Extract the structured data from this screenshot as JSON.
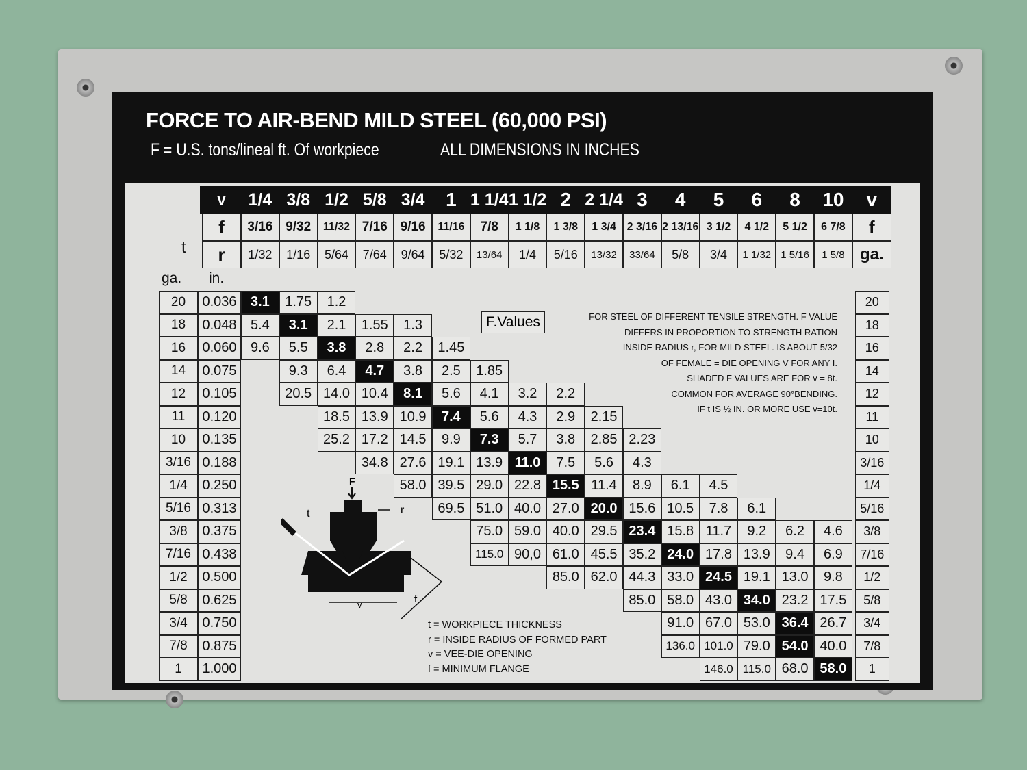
{
  "title": "FORCE TO AIR-BEND MILD STEEL (60,000 PSI)",
  "subtitle_left": "F = U.S. tons/lineal ft. Of workpiece",
  "subtitle_right": "ALL DIMENSIONS IN INCHES",
  "header": {
    "v_label": "v",
    "f_label": "f",
    "r_label": "r",
    "t_label": "t",
    "ga_label": "ga.",
    "in_label": "in.",
    "right_v": "v",
    "right_f": "f",
    "right_ga": "ga.",
    "v": [
      "1/4",
      "3/8",
      "1/2",
      "5/8",
      "3/4",
      "1",
      "1 1/4",
      "1 1/2",
      "2",
      "2 1/4",
      "3",
      "4",
      "5",
      "6",
      "8",
      "10"
    ],
    "f": [
      "3/16",
      "9/32",
      "11/32",
      "7/16",
      "9/16",
      "11/16",
      "7/8",
      "1 1/8",
      "1 3/8",
      "1 3/4",
      "2 3/16",
      "2 13/16",
      "3 1/2",
      "4 1/2",
      "5 1/2",
      "6 7/8"
    ],
    "r": [
      "1/32",
      "1/16",
      "5/64",
      "7/64",
      "9/64",
      "5/32",
      "13/64",
      "1/4",
      "5/16",
      "13/32",
      "33/64",
      "5/8",
      "3/4",
      "1 1/32",
      "1 5/16",
      "1 5/8"
    ]
  },
  "rows": [
    {
      "ga": "20",
      "in": "0.036",
      "start": 0,
      "shaded": 0,
      "values": [
        "3.1",
        "1.75",
        "1.2"
      ]
    },
    {
      "ga": "18",
      "in": "0.048",
      "start": 0,
      "shaded": 1,
      "values": [
        "5.4",
        "3.1",
        "2.1",
        "1.55",
        "1.3"
      ]
    },
    {
      "ga": "16",
      "in": "0.060",
      "start": 0,
      "shaded": 2,
      "values": [
        "9.6",
        "5.5",
        "3.8",
        "2.8",
        "2.2",
        "1.45"
      ]
    },
    {
      "ga": "14",
      "in": "0.075",
      "start": 1,
      "shaded": 2,
      "values": [
        "9.3",
        "6.4",
        "4.7",
        "3.8",
        "2.5",
        "1.85"
      ]
    },
    {
      "ga": "12",
      "in": "0.105",
      "start": 1,
      "shaded": 3,
      "values": [
        "20.5",
        "14.0",
        "10.4",
        "8.1",
        "5.6",
        "4.1",
        "3.2",
        "2.2"
      ]
    },
    {
      "ga": "11",
      "in": "0.120",
      "start": 2,
      "shaded": 3,
      "values": [
        "18.5",
        "13.9",
        "10.9",
        "7.4",
        "5.6",
        "4.3",
        "2.9",
        "2.15"
      ]
    },
    {
      "ga": "10",
      "in": "0.135",
      "start": 2,
      "shaded": 4,
      "values": [
        "25.2",
        "17.2",
        "14.5",
        "9.9",
        "7.3",
        "5.7",
        "3.8",
        "2.85",
        "2.23"
      ]
    },
    {
      "ga": "3/16",
      "in": "0.188",
      "start": 3,
      "shaded": 4,
      "values": [
        "34.8",
        "27.6",
        "19.1",
        "13.9",
        "11.0",
        "7.5",
        "5.6",
        "4.3"
      ]
    },
    {
      "ga": "1/4",
      "in": "0.250",
      "start": 4,
      "shaded": 4,
      "values": [
        "58.0",
        "39.5",
        "29.0",
        "22.8",
        "15.5",
        "11.4",
        "8.9",
        "6.1",
        "4.5"
      ]
    },
    {
      "ga": "5/16",
      "in": "0.313",
      "start": 5,
      "shaded": 4,
      "values": [
        "69.5",
        "51.0",
        "40.0",
        "27.0",
        "20.0",
        "15.6",
        "10.5",
        "7.8",
        "6.1"
      ]
    },
    {
      "ga": "3/8",
      "in": "0.375",
      "start": 6,
      "shaded": 4,
      "values": [
        "75.0",
        "59.0",
        "40.0",
        "29.5",
        "23.4",
        "15.8",
        "11.7",
        "9.2",
        "6.2",
        "4.6"
      ]
    },
    {
      "ga": "7/16",
      "in": "0.438",
      "start": 6,
      "shaded": 5,
      "values": [
        "115.0",
        "90,0",
        "61.0",
        "45.5",
        "35.2",
        "24.0",
        "17.8",
        "13.9",
        "9.4",
        "6.9"
      ]
    },
    {
      "ga": "1/2",
      "in": "0.500",
      "start": 8,
      "shaded": 4,
      "values": [
        "85.0",
        "62.0",
        "44.3",
        "33.0",
        "24.5",
        "19.1",
        "13.0",
        "9.8"
      ]
    },
    {
      "ga": "5/8",
      "in": "0.625",
      "start": 10,
      "shaded": 3,
      "values": [
        "85.0",
        "58.0",
        "43.0",
        "34.0",
        "23.2",
        "17.5"
      ]
    },
    {
      "ga": "3/4",
      "in": "0.750",
      "start": 11,
      "shaded": 3,
      "values": [
        "91.0",
        "67.0",
        "53.0",
        "36.4",
        "26.7"
      ]
    },
    {
      "ga": "7/8",
      "in": "0.875",
      "start": 11,
      "shaded": 3,
      "values": [
        "136.0",
        "101.0",
        "79.0",
        "54.0",
        "40.0"
      ]
    },
    {
      "ga": "1",
      "in": "1.000",
      "start": 12,
      "shaded": 3,
      "values": [
        "146.0",
        "115.0",
        "68.0",
        "58.0"
      ]
    }
  ],
  "f_values_label": "F.Values",
  "notes": [
    "FOR STEEL OF DIFFERENT TENSILE STRENGTH. F VALUE",
    "DIFFERS IN PROPORTION TO STRENGTH RATION",
    "INSIDE RADIUS r, FOR MILD STEEL. IS ABOUT 5/32",
    "OF FEMALE = DIE OPENING V FOR ANY I.",
    "SHADED F VALUES ARE FOR v = 8t.",
    "COMMON FOR AVERAGE 90°BENDING.",
    "IF t IS ½ IN. OR MORE USE v=10t."
  ],
  "legend": [
    "t = WORKPIECE THICKNESS",
    "r = INSIDE RADIUS OF FORMED PART",
    "v = VEE-DIE OPENING",
    "f = MINIMUM FLANGE"
  ],
  "diagram_labels": {
    "F": "F",
    "t": "t",
    "r": "r",
    "v": "v",
    "f": "f"
  },
  "colors": {
    "background": "#8fb49c",
    "plate": "#c6c6c4",
    "frame": "#111111",
    "shaded": "#0d0d0d"
  }
}
